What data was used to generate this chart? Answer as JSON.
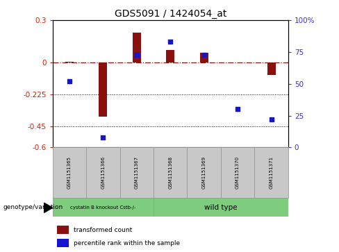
{
  "title": "GDS5091 / 1424054_at",
  "samples": [
    "GSM1151365",
    "GSM1151366",
    "GSM1151367",
    "GSM1151368",
    "GSM1151369",
    "GSM1151370",
    "GSM1151371"
  ],
  "transformed_count": [
    0.005,
    -0.38,
    0.21,
    0.09,
    0.07,
    0.003,
    -0.09
  ],
  "percentile_rank": [
    52,
    8,
    73,
    83,
    73,
    30,
    22
  ],
  "ylim_left": [
    -0.6,
    0.3
  ],
  "ylim_right": [
    0,
    100
  ],
  "yticks_left": [
    0.3,
    0.0,
    -0.225,
    -0.45,
    -0.6
  ],
  "yticks_right": [
    100,
    75,
    50,
    25,
    0
  ],
  "ytick_labels_left": [
    "0.3",
    "0",
    "-0.225",
    "-0.45",
    "-0.6"
  ],
  "ytick_labels_right": [
    "100%",
    "75",
    "50",
    "25",
    "0"
  ],
  "hline_y": 0.0,
  "dotted_lines": [
    -0.225,
    -0.45
  ],
  "group_labels": [
    "cystatin B knockout Cstb-/-",
    "wild type"
  ],
  "bar_color": "#8B1010",
  "dot_color": "#1515CC",
  "bar_width": 0.25,
  "dot_size": 25,
  "legend_items": [
    "transformed count",
    "percentile rank within the sample"
  ],
  "left_axis_color": "#CC2200",
  "right_axis_color": "#3333CC",
  "box_color": "#C8C8C8",
  "box_edge": "#999999",
  "green_color": "#7ECC7E"
}
